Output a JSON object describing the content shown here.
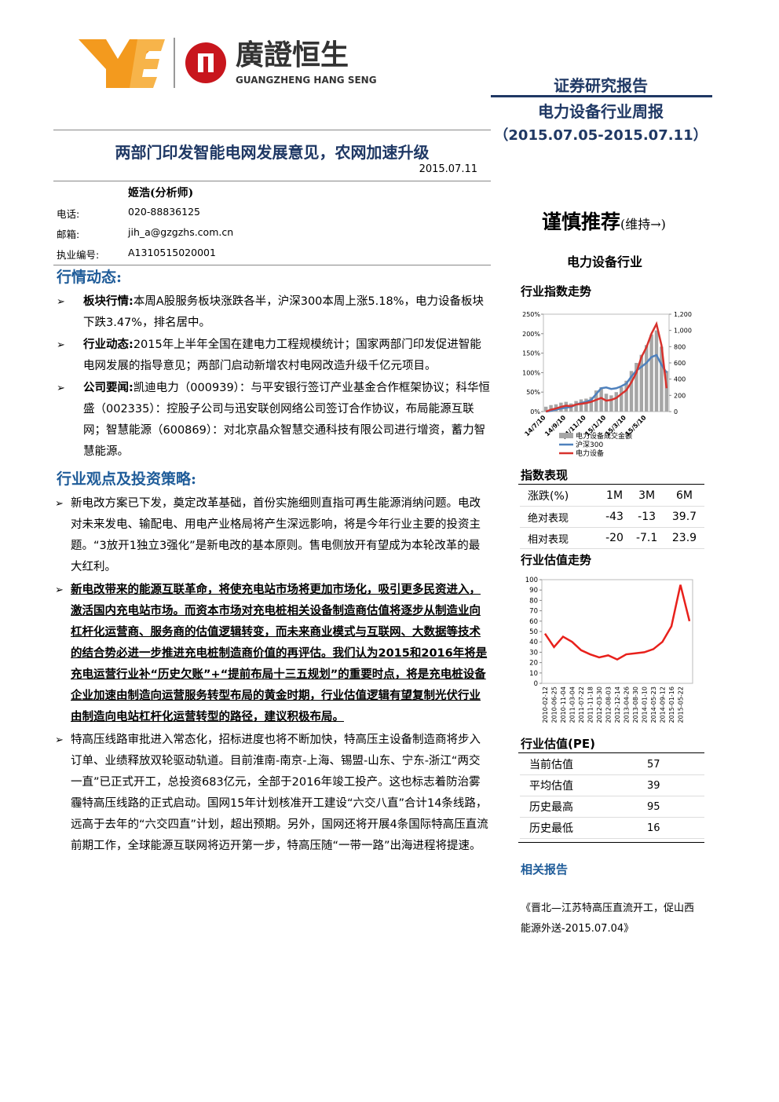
{
  "header": {
    "logo_text": "廣證恒生",
    "logo_sub": "GUANGZHENG HANG SENG",
    "report_type": "证券研究报告",
    "report_name": "电力设备行业周报",
    "period": "（2015.07.05-2015.07.11）"
  },
  "title": "两部门印发智能电网发展意见，农网加速升级",
  "date": "2015.07.11",
  "analyst": {
    "name": "姬浩(分析师)",
    "rows": [
      [
        "电话:",
        "020-88836125"
      ],
      [
        "邮箱:",
        "jih_a@gzgzhs.com.cn"
      ],
      [
        "执业编号:",
        "A1310515020001"
      ]
    ]
  },
  "market": {
    "heading": "行情动态:",
    "items": [
      {
        "label": "板块行情:",
        "text": "本周A股服务板块涨跌各半，沪深300本周上涨5.18%，电力设备板块下跌3.47%，排名居中。"
      },
      {
        "label": "行业动态:",
        "text": "2015年上半年全国在建电力工程规模统计；国家两部门印发促进智能电网发展的指导意见；两部门启动新增农村电网改造升级千亿元项目。"
      },
      {
        "label": "公司要闻:",
        "text": "凯迪电力（000939）：与平安银行签订产业基金合作框架协议；科华恒盛（002335）：控股子公司与迅安联创网络公司签订合作协议，布局能源互联网；智慧能源（600869）：对北京晶众智慧交通科技有限公司进行增资，蓄力智慧能源。"
      }
    ]
  },
  "strategy": {
    "heading": "行业观点及投资策略:",
    "paragraphs": [
      {
        "text": "新电改方案已下发，奠定改革基础，首份实施细则直指可再生能源消纳问题。电改对未来发电、输配电、用电产业格局将产生深远影响，将是今年行业主要的投资主题。“3放开1独立3强化”是新电改的基本原则。售电侧放开有望成为本轮改革的最大红利。",
        "emphasis": false
      },
      {
        "text": "新电改带来的能源互联革命，将使充电站市场将更加市场化，吸引更多民资进入，激活国内充电站市场。而资本市场对充电桩相关设备制造商估值将逐步从制造业向杠杆化运营商、服务商的估值逻辑转变，而未来商业模式与互联网、大数据等技术的结合势必进一步推进充电桩制造商价值的再评估。我们认为2015和2016年将是充电运营行业补“历史欠账”+“提前布局十三五规划”的重要时点，将是充电桩设备企业加速由制造向运营服务转型布局的黄金时期，行业估值逻辑有望复制光伏行业由制造向电站杠杆化运营转型的路径，建议积极布局。",
        "emphasis": true
      },
      {
        "text": "特高压线路审批进入常态化，招标进度也将不断加快，特高压主设备制造商将步入订单、业绩释放双轮驱动轨道。目前淮南-南京-上海、锡盟-山东、宁东-浙江“两交一直”已正式开工，总投资683亿元，全部于2016年竣工投产。这也标志着防治雾霾特高压线路的正式启动。国网15年计划核准开工建设“六交八直”合计14条线路，远高于去年的“六交四直”计划，超出预期。另外，国网还将开展4条国际特高压直流前期工作，全球能源互联网将迈开第一步，特高压随“一带一路”出海进程将提速。",
        "emphasis": false
      }
    ]
  },
  "rating": "谨慎推荐",
  "rating_note": "(维持→)",
  "industry": "电力设备行业",
  "index_chart": {
    "type": "bar-line",
    "title": "行业指数走势",
    "categories": [
      "14/7/10",
      null,
      null,
      null,
      "14/9/10",
      null,
      null,
      null,
      "14/11/10",
      null,
      null,
      null,
      "15/1/10",
      null,
      null,
      null,
      "15/3/10",
      null,
      null,
      null,
      "15/5/10",
      null,
      null,
      null,
      null
    ],
    "series": [
      {
        "name": "电力设备成交金额",
        "type": "bar",
        "axis": "y2",
        "color": "#a6a6a6",
        "values": [
          60,
          80,
          90,
          110,
          120,
          100,
          130,
          150,
          160,
          180,
          260,
          300,
          220,
          200,
          240,
          300,
          380,
          500,
          600,
          700,
          820,
          950,
          1000,
          800,
          500
        ]
      },
      {
        "name": "沪深300",
        "type": "line",
        "color": "#4f81bd",
        "values": [
          0,
          2,
          5,
          8,
          10,
          12,
          18,
          22,
          25,
          30,
          45,
          60,
          62,
          58,
          60,
          65,
          72,
          90,
          105,
          115,
          125,
          140,
          145,
          120,
          100
        ]
      },
      {
        "name": "电力设备",
        "type": "line",
        "color": "#d7322d",
        "values": [
          0,
          5,
          8,
          12,
          15,
          14,
          18,
          20,
          22,
          25,
          30,
          35,
          28,
          30,
          35,
          45,
          55,
          75,
          100,
          140,
          165,
          200,
          225,
          170,
          60
        ]
      }
    ],
    "ylim": [
      0,
      250
    ],
    "yticks": [
      {
        "value": 0,
        "label": "0%"
      },
      {
        "value": 50,
        "label": "50%"
      },
      {
        "value": 100,
        "label": "100%"
      },
      {
        "value": 150,
        "label": "150%"
      },
      {
        "value": 200,
        "label": "200%"
      },
      {
        "value": 250,
        "label": "250%"
      }
    ],
    "y2lim": [
      0,
      1200
    ],
    "y2ticks": [
      0,
      200,
      400,
      600,
      800,
      {
        "value": 1000,
        "label": "1,000"
      },
      {
        "value": 1200,
        "label": "1,200"
      }
    ]
  },
  "performance": {
    "title": "指数表现",
    "header": [
      "涨跌(%)",
      "1M",
      "3M",
      "6M"
    ],
    "rows": [
      [
        "绝对表现",
        -43,
        -13,
        39.7
      ],
      [
        "相对表现",
        -20,
        -7.1,
        23.9
      ]
    ]
  },
  "valuation_chart": {
    "type": "line",
    "title": "行业估值走势",
    "categories": [
      "2010-02-12",
      "2010-06-25",
      "2010-11-04",
      "2011-03-04",
      "2011-07-22",
      "2011-11-18",
      "2012-03-30",
      "2012-08-03",
      "2012-12-14",
      "2013-04-26",
      "2013-08-30",
      "2014-01-10",
      "2014-05-23",
      "2014-09-12",
      "2015-01-16",
      "2015-05-22",
      null
    ],
    "values": [
      48,
      35,
      45,
      40,
      32,
      28,
      25,
      27,
      23,
      28,
      29,
      30,
      33,
      40,
      55,
      95,
      60
    ],
    "color": "#e8201b",
    "ylim": [
      0,
      100
    ],
    "yticks": [
      0,
      10,
      20,
      30,
      40,
      50,
      60,
      70,
      80,
      90,
      100
    ]
  },
  "pe": {
    "title": "行业估值(PE)",
    "rows": [
      [
        "当前估值",
        57
      ],
      [
        "平均估值",
        39
      ],
      [
        "历史最高",
        95
      ],
      [
        "历史最低",
        16
      ]
    ]
  },
  "related": {
    "title": "相关报告",
    "items": [
      "《晋北—江苏特高压直流开工，促山西能源外送-2015.07.04》"
    ]
  }
}
